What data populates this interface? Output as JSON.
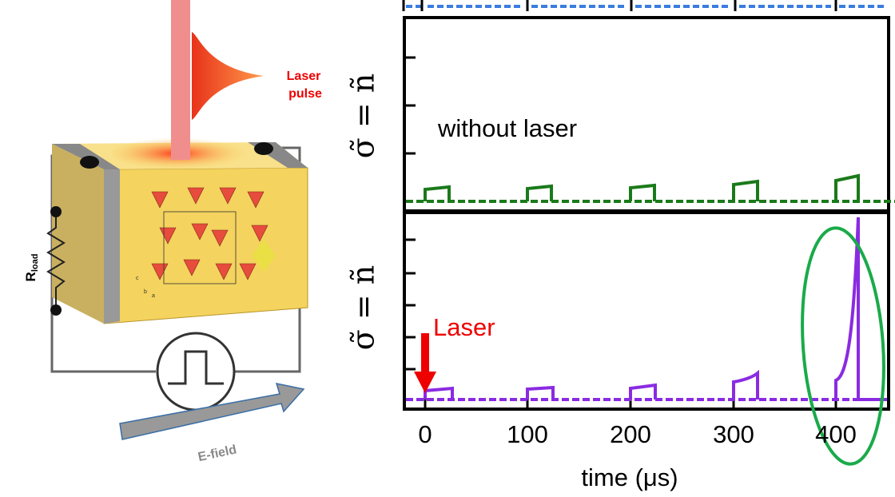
{
  "diagram": {
    "laser_label": [
      "Laser",
      "pulse"
    ],
    "resistor_label": {
      "main": "R",
      "subscript": "load"
    },
    "crystal_axes": [
      "c",
      "b",
      "a"
    ],
    "field_label": "E-field",
    "panels": [
      {
        "y_label": "σ̃ = ñ",
        "annotation": "without laser"
      },
      {
        "y_label": "σ̃ = ñ",
        "annotation": "Laser"
      }
    ],
    "x_axis": {
      "ticks": [
        "0",
        "100",
        "200",
        "300",
        "400"
      ],
      "label": "time (μs)"
    }
  }
}
